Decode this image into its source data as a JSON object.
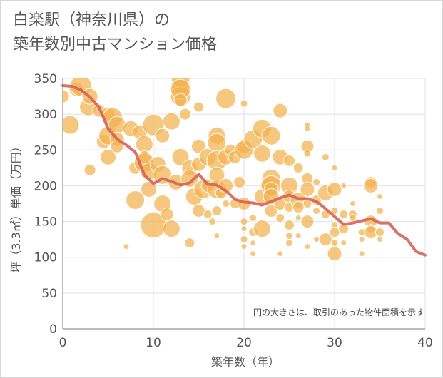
{
  "title_line1": "白楽駅（神奈川県）の",
  "title_line2": "築年数別中古マンション価格",
  "colors": {
    "bubble_fill": "#f2b24e",
    "bubble_stroke": "#ffffff",
    "line": "#d4645a",
    "grid": "#e0e0e0",
    "axis": "#777777"
  },
  "chart_data": {
    "type": "scatter",
    "xlabel": "築年数（年）",
    "ylabel": "坪（3.3㎡）単価（万円）",
    "xlim": [
      0,
      40
    ],
    "ylim": [
      0,
      350
    ],
    "xticks": [
      0,
      10,
      20,
      30,
      40
    ],
    "yticks": [
      0,
      50,
      100,
      150,
      200,
      250,
      300,
      350
    ],
    "grid": true,
    "note": "円の大きさは、取引のあった物件面積を示す",
    "bubbles": [
      [
        0,
        325,
        9
      ],
      [
        0.8,
        285,
        13
      ],
      [
        1.5,
        335,
        10
      ],
      [
        2,
        340,
        15
      ],
      [
        2.8,
        310,
        12
      ],
      [
        3,
        325,
        11
      ],
      [
        3,
        222,
        8
      ],
      [
        4,
        305,
        9
      ],
      [
        4.5,
        262,
        10
      ],
      [
        5,
        270,
        13
      ],
      [
        5,
        300,
        10
      ],
      [
        5,
        240,
        11
      ],
      [
        5.5,
        295,
        14
      ],
      [
        6,
        285,
        12
      ],
      [
        6,
        265,
        10
      ],
      [
        6,
        255,
        9
      ],
      [
        7,
        115,
        4
      ],
      [
        7.5,
        280,
        11
      ],
      [
        8,
        225,
        9
      ],
      [
        8,
        180,
        13
      ],
      [
        8.5,
        275,
        10
      ],
      [
        9,
        258,
        12
      ],
      [
        9,
        240,
        9
      ],
      [
        9,
        232,
        14
      ],
      [
        9.5,
        220,
        12
      ],
      [
        9.5,
        195,
        11
      ],
      [
        10,
        285,
        15
      ],
      [
        10,
        145,
        18
      ],
      [
        10.5,
        230,
        11
      ],
      [
        11,
        270,
        10
      ],
      [
        11,
        215,
        13
      ],
      [
        11,
        175,
        12
      ],
      [
        11.5,
        160,
        9
      ],
      [
        12,
        290,
        12
      ],
      [
        12,
        140,
        12
      ],
      [
        12.5,
        205,
        11
      ],
      [
        13,
        340,
        12
      ],
      [
        13,
        325,
        14
      ],
      [
        13,
        350,
        13
      ],
      [
        13,
        335,
        14
      ],
      [
        13,
        320,
        9
      ],
      [
        13,
        240,
        12
      ],
      [
        13.5,
        300,
        8
      ],
      [
        14,
        225,
        11
      ],
      [
        14,
        210,
        12
      ],
      [
        14,
        120,
        7
      ],
      [
        14.5,
        185,
        12
      ],
      [
        15,
        310,
        7
      ],
      [
        15,
        255,
        10
      ],
      [
        15,
        230,
        10
      ],
      [
        15,
        165,
        9
      ],
      [
        15.5,
        195,
        13
      ],
      [
        16,
        240,
        12
      ],
      [
        16,
        200,
        9
      ],
      [
        16,
        160,
        6
      ],
      [
        16.5,
        150,
        5
      ],
      [
        17,
        270,
        12
      ],
      [
        17,
        260,
        13
      ],
      [
        17,
        235,
        14
      ],
      [
        17,
        215,
        11
      ],
      [
        17,
        195,
        13
      ],
      [
        17,
        165,
        7
      ],
      [
        17,
        130,
        4
      ],
      [
        17.5,
        190,
        8
      ],
      [
        18,
        322,
        14
      ],
      [
        18,
        240,
        11
      ],
      [
        18,
        200,
        10
      ],
      [
        18,
        175,
        5
      ],
      [
        18.5,
        250,
        8
      ],
      [
        19,
        240,
        9
      ],
      [
        19,
        175,
        7
      ],
      [
        19.5,
        205,
        8
      ],
      [
        20,
        315,
        5
      ],
      [
        20,
        255,
        10
      ],
      [
        20,
        250,
        13
      ],
      [
        20,
        175,
        9
      ],
      [
        20,
        150,
        5
      ],
      [
        20,
        140,
        4
      ],
      [
        20,
        125,
        5
      ],
      [
        20,
        115,
        4
      ],
      [
        21,
        265,
        13
      ],
      [
        21,
        155,
        5
      ],
      [
        21,
        135,
        6
      ],
      [
        21,
        120,
        4
      ],
      [
        21,
        105,
        4
      ],
      [
        22,
        280,
        13
      ],
      [
        22,
        245,
        12
      ],
      [
        22,
        185,
        11
      ],
      [
        22,
        140,
        12
      ],
      [
        22.5,
        200,
        9
      ],
      [
        23,
        270,
        13
      ],
      [
        23,
        210,
        13
      ],
      [
        23,
        200,
        14
      ],
      [
        23,
        195,
        10
      ],
      [
        23,
        185,
        11
      ],
      [
        23,
        165,
        9
      ],
      [
        24,
        305,
        10
      ],
      [
        24,
        240,
        11
      ],
      [
        24,
        175,
        9
      ],
      [
        24,
        155,
        6
      ],
      [
        24,
        105,
        4
      ],
      [
        25,
        235,
        8
      ],
      [
        25,
        200,
        12
      ],
      [
        25,
        185,
        9
      ],
      [
        25,
        170,
        7
      ],
      [
        25,
        145,
        7
      ],
      [
        25,
        130,
        5
      ],
      [
        25,
        120,
        5
      ],
      [
        26,
        225,
        7
      ],
      [
        26,
        180,
        11
      ],
      [
        26,
        170,
        8
      ],
      [
        26,
        155,
        4
      ],
      [
        26,
        130,
        4
      ],
      [
        27,
        285,
        4
      ],
      [
        27,
        280,
        4
      ],
      [
        27,
        255,
        9
      ],
      [
        27,
        245,
        5
      ],
      [
        27,
        210,
        8
      ],
      [
        27,
        195,
        10
      ],
      [
        27,
        175,
        6
      ],
      [
        27,
        150,
        9
      ],
      [
        27,
        115,
        4
      ],
      [
        28,
        205,
        5
      ],
      [
        28,
        180,
        7
      ],
      [
        28,
        165,
        5
      ],
      [
        28,
        125,
        4
      ],
      [
        29,
        240,
        5
      ],
      [
        29,
        190,
        11
      ],
      [
        29,
        160,
        6
      ],
      [
        29,
        125,
        9
      ],
      [
        30,
        225,
        4
      ],
      [
        30,
        195,
        10
      ],
      [
        30,
        165,
        5
      ],
      [
        30,
        145,
        5
      ],
      [
        30,
        135,
        7
      ],
      [
        30,
        120,
        5
      ],
      [
        30,
        105,
        10
      ],
      [
        31,
        200,
        4
      ],
      [
        31,
        160,
        6
      ],
      [
        31,
        140,
        7
      ],
      [
        31,
        120,
        4
      ],
      [
        32,
        175,
        4
      ],
      [
        32,
        160,
        6
      ],
      [
        32,
        155,
        5
      ],
      [
        33,
        135,
        5
      ],
      [
        33,
        125,
        4
      ],
      [
        33,
        105,
        4
      ],
      [
        34,
        205,
        8
      ],
      [
        34,
        200,
        10
      ],
      [
        34,
        150,
        9
      ],
      [
        34,
        140,
        6
      ],
      [
        34,
        135,
        9
      ],
      [
        35,
        185,
        4
      ],
      [
        35,
        165,
        5
      ],
      [
        35,
        135,
        6
      ],
      [
        35,
        125,
        4
      ]
    ],
    "line": [
      [
        0,
        340
      ],
      [
        1,
        339
      ],
      [
        2,
        334
      ],
      [
        3,
        324
      ],
      [
        4,
        310
      ],
      [
        5,
        280
      ],
      [
        6,
        265
      ],
      [
        7,
        257
      ],
      [
        8,
        247
      ],
      [
        9,
        215
      ],
      [
        10,
        203
      ],
      [
        11,
        210
      ],
      [
        12,
        206
      ],
      [
        13,
        201
      ],
      [
        14,
        204
      ],
      [
        15,
        216
      ],
      [
        16,
        202
      ],
      [
        17,
        201
      ],
      [
        18,
        193
      ],
      [
        19,
        181
      ],
      [
        20,
        177
      ],
      [
        21,
        176
      ],
      [
        22,
        173
      ],
      [
        23,
        178
      ],
      [
        24,
        183
      ],
      [
        25,
        187
      ],
      [
        26,
        182
      ],
      [
        27,
        182
      ],
      [
        28,
        178
      ],
      [
        29,
        168
      ],
      [
        30,
        157
      ],
      [
        31,
        146
      ],
      [
        32,
        148
      ],
      [
        33,
        151
      ],
      [
        34,
        154
      ],
      [
        35,
        148
      ],
      [
        36,
        148
      ],
      [
        37,
        133
      ],
      [
        38,
        125
      ],
      [
        39,
        108
      ],
      [
        40,
        103
      ]
    ]
  }
}
